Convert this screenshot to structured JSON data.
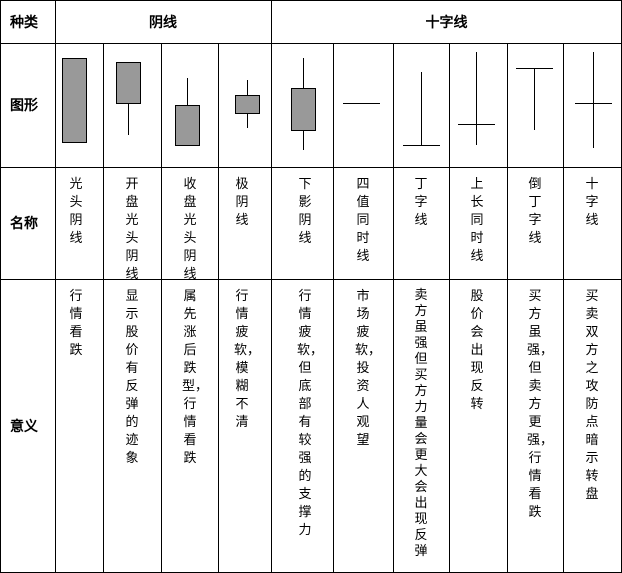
{
  "header": {
    "category_label": "种类",
    "group_yin": "阴线",
    "group_cross": "十字线"
  },
  "row_labels": {
    "shape": "图形",
    "name": "名称",
    "meaning": "意义"
  },
  "columns": [
    {
      "name": "光头阴线",
      "meaning": "行情看跌"
    },
    {
      "name": "开盘光头阴线",
      "meaning": "显示股价有反弹的迹象"
    },
    {
      "name": "收盘光头阴线",
      "meaning": "属先涨后跌型，行情看跌"
    },
    {
      "name": "极阴线",
      "meaning": "行情疲软，模糊不清"
    },
    {
      "name": "下影阴线",
      "meaning": "行情疲软，但底部有较强的支撑力"
    },
    {
      "name": "四值同时线",
      "meaning": "市场疲软，投资人观望"
    },
    {
      "name": "丁字线",
      "meaning": "卖方虽强但买方力量会更大 会出现反弹"
    },
    {
      "name": "上长同时线",
      "meaning": "股价会出现反转"
    },
    {
      "name": "倒丁字线",
      "meaning": "买方虽强，但卖方更强，行情看跌"
    },
    {
      "name": "十字线",
      "meaning": "买卖双方之攻防点暗示转盘"
    }
  ],
  "colors": {
    "grid": "#000000",
    "candle_fill": "#999999",
    "text": "#000000"
  }
}
